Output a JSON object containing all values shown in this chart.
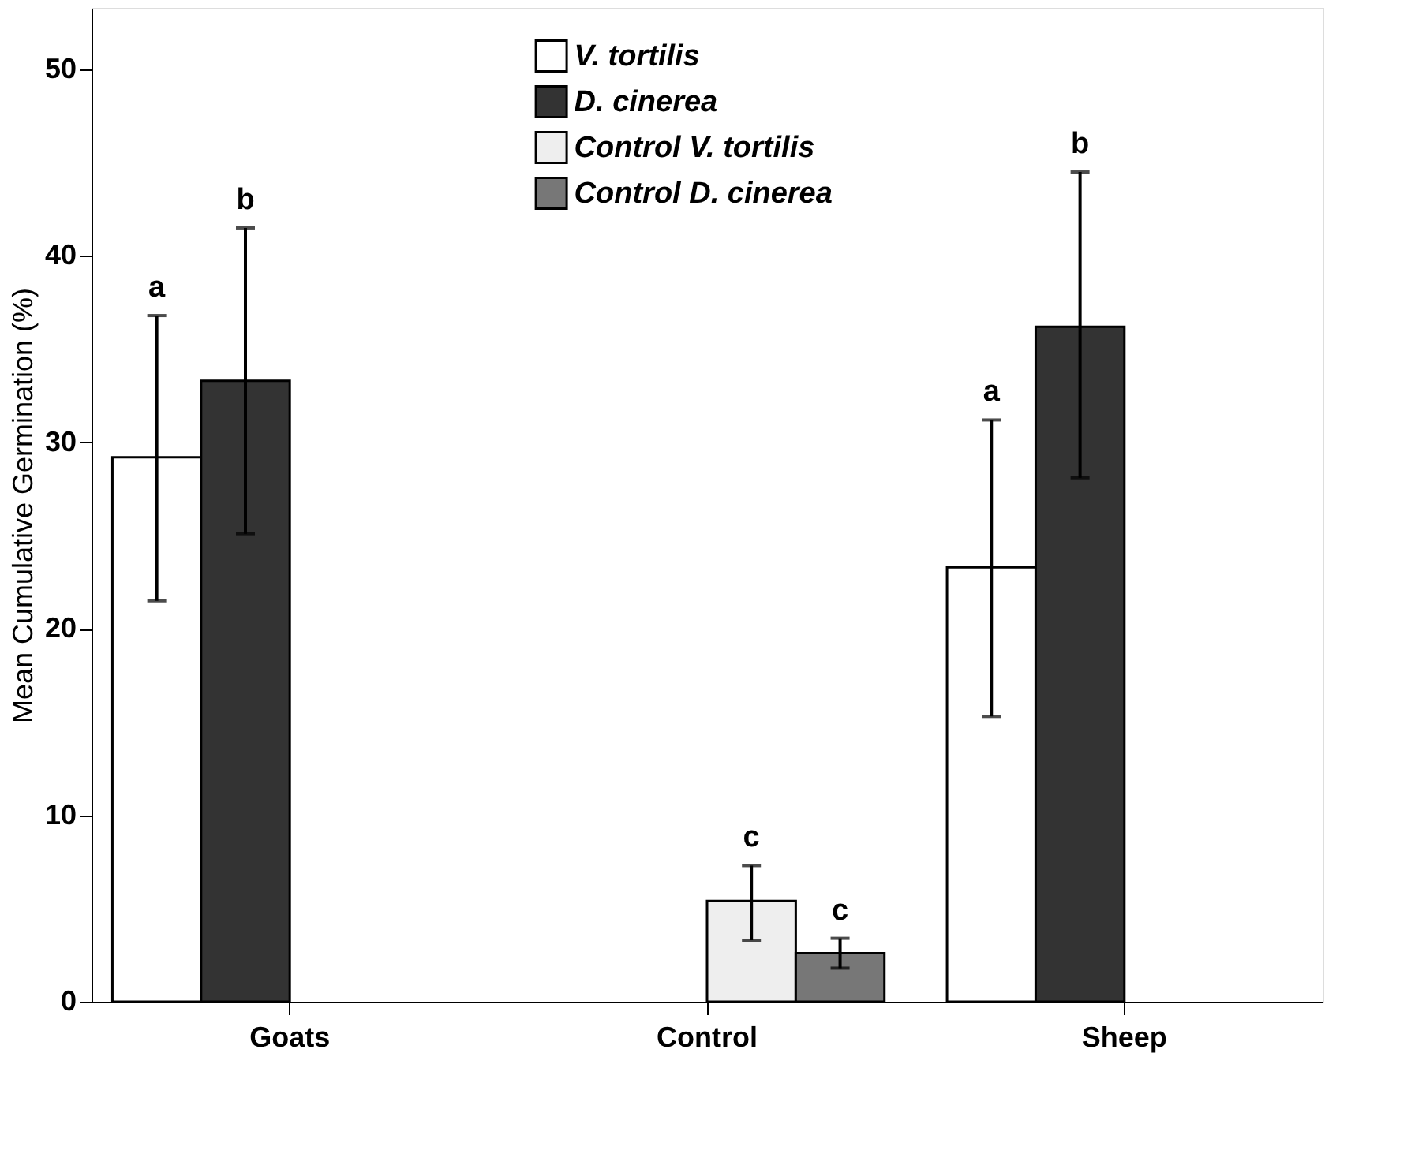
{
  "chart_data": {
    "type": "bar",
    "ylabel": "Mean Cumulative Germination (%)",
    "categories": [
      "Goats",
      "Control",
      "Sheep"
    ],
    "series": [
      {
        "name": "V. tortilis",
        "color": "#ffffff",
        "values": [
          29.2,
          null,
          23.3
        ],
        "errors": [
          [
            21.5,
            36.8
          ],
          null,
          [
            15.3,
            31.2
          ]
        ]
      },
      {
        "name": "D. cinerea",
        "color": "#333333",
        "values": [
          33.3,
          null,
          36.2
        ],
        "errors": [
          [
            25.1,
            41.5
          ],
          null,
          [
            28.1,
            44.5
          ]
        ]
      },
      {
        "name": "Control V. tortilis",
        "color": "#eeeeee",
        "values": [
          null,
          5.4,
          null
        ],
        "errors": [
          null,
          [
            3.3,
            7.3
          ],
          null
        ]
      },
      {
        "name": "Control D. cinerea",
        "color": "#777777",
        "values": [
          null,
          2.6,
          null
        ],
        "errors": [
          null,
          [
            1.8,
            3.4
          ],
          null
        ]
      }
    ],
    "ylim": [
      0,
      53.3
    ],
    "yticks": [
      0,
      10,
      20,
      30,
      40,
      50
    ],
    "annotations": [
      "a",
      "b",
      "c",
      "c",
      "a",
      "b"
    ],
    "grid": false,
    "legend": "top"
  }
}
